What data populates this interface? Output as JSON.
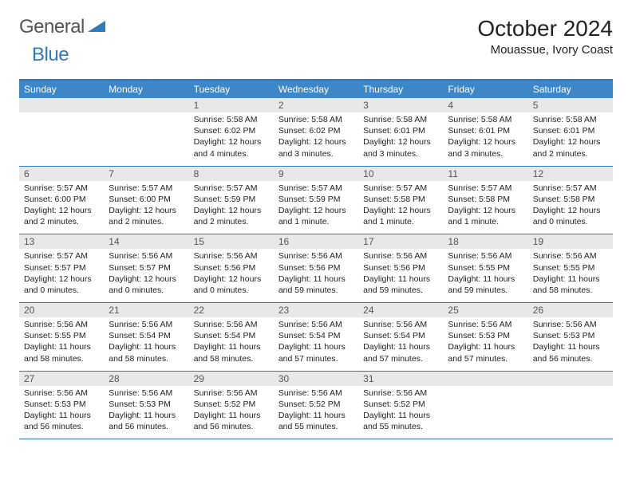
{
  "logo": {
    "text1": "General",
    "text2": "Blue"
  },
  "title": "October 2024",
  "location": "Mouassue, Ivory Coast",
  "colors": {
    "accent": "#3d87c9",
    "border": "#2f79bf",
    "dayNumBg": "#e8e8e8"
  },
  "weekdays": [
    "Sunday",
    "Monday",
    "Tuesday",
    "Wednesday",
    "Thursday",
    "Friday",
    "Saturday"
  ],
  "weeks": [
    [
      {
        "n": "",
        "lines": []
      },
      {
        "n": "",
        "lines": []
      },
      {
        "n": "1",
        "lines": [
          "Sunrise: 5:58 AM",
          "Sunset: 6:02 PM",
          "Daylight: 12 hours and 4 minutes."
        ]
      },
      {
        "n": "2",
        "lines": [
          "Sunrise: 5:58 AM",
          "Sunset: 6:02 PM",
          "Daylight: 12 hours and 3 minutes."
        ]
      },
      {
        "n": "3",
        "lines": [
          "Sunrise: 5:58 AM",
          "Sunset: 6:01 PM",
          "Daylight: 12 hours and 3 minutes."
        ]
      },
      {
        "n": "4",
        "lines": [
          "Sunrise: 5:58 AM",
          "Sunset: 6:01 PM",
          "Daylight: 12 hours and 3 minutes."
        ]
      },
      {
        "n": "5",
        "lines": [
          "Sunrise: 5:58 AM",
          "Sunset: 6:01 PM",
          "Daylight: 12 hours and 2 minutes."
        ]
      }
    ],
    [
      {
        "n": "6",
        "lines": [
          "Sunrise: 5:57 AM",
          "Sunset: 6:00 PM",
          "Daylight: 12 hours and 2 minutes."
        ]
      },
      {
        "n": "7",
        "lines": [
          "Sunrise: 5:57 AM",
          "Sunset: 6:00 PM",
          "Daylight: 12 hours and 2 minutes."
        ]
      },
      {
        "n": "8",
        "lines": [
          "Sunrise: 5:57 AM",
          "Sunset: 5:59 PM",
          "Daylight: 12 hours and 2 minutes."
        ]
      },
      {
        "n": "9",
        "lines": [
          "Sunrise: 5:57 AM",
          "Sunset: 5:59 PM",
          "Daylight: 12 hours and 1 minute."
        ]
      },
      {
        "n": "10",
        "lines": [
          "Sunrise: 5:57 AM",
          "Sunset: 5:58 PM",
          "Daylight: 12 hours and 1 minute."
        ]
      },
      {
        "n": "11",
        "lines": [
          "Sunrise: 5:57 AM",
          "Sunset: 5:58 PM",
          "Daylight: 12 hours and 1 minute."
        ]
      },
      {
        "n": "12",
        "lines": [
          "Sunrise: 5:57 AM",
          "Sunset: 5:58 PM",
          "Daylight: 12 hours and 0 minutes."
        ]
      }
    ],
    [
      {
        "n": "13",
        "lines": [
          "Sunrise: 5:57 AM",
          "Sunset: 5:57 PM",
          "Daylight: 12 hours and 0 minutes."
        ]
      },
      {
        "n": "14",
        "lines": [
          "Sunrise: 5:56 AM",
          "Sunset: 5:57 PM",
          "Daylight: 12 hours and 0 minutes."
        ]
      },
      {
        "n": "15",
        "lines": [
          "Sunrise: 5:56 AM",
          "Sunset: 5:56 PM",
          "Daylight: 12 hours and 0 minutes."
        ]
      },
      {
        "n": "16",
        "lines": [
          "Sunrise: 5:56 AM",
          "Sunset: 5:56 PM",
          "Daylight: 11 hours and 59 minutes."
        ]
      },
      {
        "n": "17",
        "lines": [
          "Sunrise: 5:56 AM",
          "Sunset: 5:56 PM",
          "Daylight: 11 hours and 59 minutes."
        ]
      },
      {
        "n": "18",
        "lines": [
          "Sunrise: 5:56 AM",
          "Sunset: 5:55 PM",
          "Daylight: 11 hours and 59 minutes."
        ]
      },
      {
        "n": "19",
        "lines": [
          "Sunrise: 5:56 AM",
          "Sunset: 5:55 PM",
          "Daylight: 11 hours and 58 minutes."
        ]
      }
    ],
    [
      {
        "n": "20",
        "lines": [
          "Sunrise: 5:56 AM",
          "Sunset: 5:55 PM",
          "Daylight: 11 hours and 58 minutes."
        ]
      },
      {
        "n": "21",
        "lines": [
          "Sunrise: 5:56 AM",
          "Sunset: 5:54 PM",
          "Daylight: 11 hours and 58 minutes."
        ]
      },
      {
        "n": "22",
        "lines": [
          "Sunrise: 5:56 AM",
          "Sunset: 5:54 PM",
          "Daylight: 11 hours and 58 minutes."
        ]
      },
      {
        "n": "23",
        "lines": [
          "Sunrise: 5:56 AM",
          "Sunset: 5:54 PM",
          "Daylight: 11 hours and 57 minutes."
        ]
      },
      {
        "n": "24",
        "lines": [
          "Sunrise: 5:56 AM",
          "Sunset: 5:54 PM",
          "Daylight: 11 hours and 57 minutes."
        ]
      },
      {
        "n": "25",
        "lines": [
          "Sunrise: 5:56 AM",
          "Sunset: 5:53 PM",
          "Daylight: 11 hours and 57 minutes."
        ]
      },
      {
        "n": "26",
        "lines": [
          "Sunrise: 5:56 AM",
          "Sunset: 5:53 PM",
          "Daylight: 11 hours and 56 minutes."
        ]
      }
    ],
    [
      {
        "n": "27",
        "lines": [
          "Sunrise: 5:56 AM",
          "Sunset: 5:53 PM",
          "Daylight: 11 hours and 56 minutes."
        ]
      },
      {
        "n": "28",
        "lines": [
          "Sunrise: 5:56 AM",
          "Sunset: 5:53 PM",
          "Daylight: 11 hours and 56 minutes."
        ]
      },
      {
        "n": "29",
        "lines": [
          "Sunrise: 5:56 AM",
          "Sunset: 5:52 PM",
          "Daylight: 11 hours and 56 minutes."
        ]
      },
      {
        "n": "30",
        "lines": [
          "Sunrise: 5:56 AM",
          "Sunset: 5:52 PM",
          "Daylight: 11 hours and 55 minutes."
        ]
      },
      {
        "n": "31",
        "lines": [
          "Sunrise: 5:56 AM",
          "Sunset: 5:52 PM",
          "Daylight: 11 hours and 55 minutes."
        ]
      },
      {
        "n": "",
        "lines": []
      },
      {
        "n": "",
        "lines": []
      }
    ]
  ]
}
